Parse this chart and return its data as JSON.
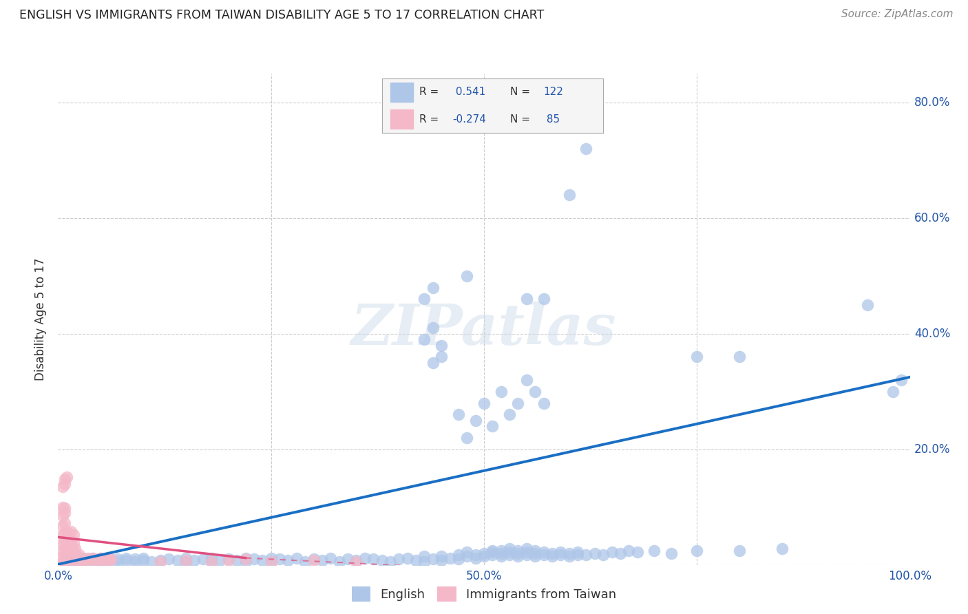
{
  "title": "ENGLISH VS IMMIGRANTS FROM TAIWAN DISABILITY AGE 5 TO 17 CORRELATION CHART",
  "source": "Source: ZipAtlas.com",
  "ylabel": "Disability Age 5 to 17",
  "xlim": [
    0.0,
    1.0
  ],
  "ylim": [
    0.0,
    0.85
  ],
  "xticks": [
    0.0,
    0.25,
    0.5,
    0.75,
    1.0
  ],
  "xticklabels": [
    "0.0%",
    "",
    "50.0%",
    "",
    "100.0%"
  ],
  "yticks": [
    0.0,
    0.2,
    0.4,
    0.6,
    0.8
  ],
  "yticklabels": [
    "",
    "20.0%",
    "40.0%",
    "60.0%",
    "80.0%"
  ],
  "english_color": "#aec6e8",
  "taiwan_color": "#f4b8c8",
  "english_line_color": "#1a6fc4",
  "taiwan_line_color": "#e05080",
  "watermark": "ZIPatlas",
  "background_color": "#ffffff",
  "grid_color": "#cccccc",
  "english_scatter": [
    [
      0.01,
      0.005
    ],
    [
      0.01,
      0.008
    ],
    [
      0.02,
      0.005
    ],
    [
      0.02,
      0.008
    ],
    [
      0.02,
      0.01
    ],
    [
      0.03,
      0.005
    ],
    [
      0.03,
      0.008
    ],
    [
      0.03,
      0.012
    ],
    [
      0.04,
      0.005
    ],
    [
      0.04,
      0.01
    ],
    [
      0.04,
      0.012
    ],
    [
      0.05,
      0.005
    ],
    [
      0.05,
      0.008
    ],
    [
      0.05,
      0.012
    ],
    [
      0.06,
      0.008
    ],
    [
      0.06,
      0.01
    ],
    [
      0.07,
      0.005
    ],
    [
      0.07,
      0.01
    ],
    [
      0.08,
      0.008
    ],
    [
      0.08,
      0.012
    ],
    [
      0.09,
      0.005
    ],
    [
      0.09,
      0.01
    ],
    [
      0.1,
      0.008
    ],
    [
      0.1,
      0.012
    ],
    [
      0.11,
      0.005
    ],
    [
      0.12,
      0.008
    ],
    [
      0.13,
      0.01
    ],
    [
      0.14,
      0.008
    ],
    [
      0.15,
      0.005
    ],
    [
      0.15,
      0.012
    ],
    [
      0.16,
      0.008
    ],
    [
      0.17,
      0.01
    ],
    [
      0.18,
      0.005
    ],
    [
      0.18,
      0.012
    ],
    [
      0.19,
      0.008
    ],
    [
      0.2,
      0.01
    ],
    [
      0.21,
      0.008
    ],
    [
      0.22,
      0.005
    ],
    [
      0.22,
      0.012
    ],
    [
      0.23,
      0.01
    ],
    [
      0.24,
      0.008
    ],
    [
      0.25,
      0.005
    ],
    [
      0.25,
      0.012
    ],
    [
      0.26,
      0.01
    ],
    [
      0.27,
      0.008
    ],
    [
      0.28,
      0.012
    ],
    [
      0.29,
      0.005
    ],
    [
      0.3,
      0.01
    ],
    [
      0.31,
      0.008
    ],
    [
      0.32,
      0.012
    ],
    [
      0.33,
      0.005
    ],
    [
      0.34,
      0.01
    ],
    [
      0.35,
      0.008
    ],
    [
      0.36,
      0.012
    ],
    [
      0.37,
      0.01
    ],
    [
      0.38,
      0.008
    ],
    [
      0.39,
      0.005
    ],
    [
      0.4,
      0.01
    ],
    [
      0.41,
      0.012
    ],
    [
      0.42,
      0.008
    ],
    [
      0.43,
      0.005
    ],
    [
      0.43,
      0.015
    ],
    [
      0.44,
      0.01
    ],
    [
      0.45,
      0.008
    ],
    [
      0.45,
      0.015
    ],
    [
      0.46,
      0.012
    ],
    [
      0.47,
      0.01
    ],
    [
      0.47,
      0.018
    ],
    [
      0.48,
      0.015
    ],
    [
      0.48,
      0.022
    ],
    [
      0.49,
      0.012
    ],
    [
      0.49,
      0.018
    ],
    [
      0.5,
      0.015
    ],
    [
      0.5,
      0.02
    ],
    [
      0.51,
      0.018
    ],
    [
      0.51,
      0.022
    ],
    [
      0.51,
      0.025
    ],
    [
      0.52,
      0.015
    ],
    [
      0.52,
      0.02
    ],
    [
      0.52,
      0.025
    ],
    [
      0.53,
      0.018
    ],
    [
      0.53,
      0.022
    ],
    [
      0.53,
      0.028
    ],
    [
      0.54,
      0.015
    ],
    [
      0.54,
      0.02
    ],
    [
      0.54,
      0.025
    ],
    [
      0.55,
      0.018
    ],
    [
      0.55,
      0.022
    ],
    [
      0.55,
      0.028
    ],
    [
      0.56,
      0.015
    ],
    [
      0.56,
      0.02
    ],
    [
      0.56,
      0.025
    ],
    [
      0.57,
      0.018
    ],
    [
      0.57,
      0.022
    ],
    [
      0.58,
      0.015
    ],
    [
      0.58,
      0.02
    ],
    [
      0.59,
      0.018
    ],
    [
      0.59,
      0.022
    ],
    [
      0.6,
      0.015
    ],
    [
      0.6,
      0.02
    ],
    [
      0.61,
      0.018
    ],
    [
      0.61,
      0.022
    ],
    [
      0.62,
      0.018
    ],
    [
      0.63,
      0.02
    ],
    [
      0.64,
      0.018
    ],
    [
      0.65,
      0.022
    ],
    [
      0.66,
      0.02
    ],
    [
      0.67,
      0.025
    ],
    [
      0.68,
      0.022
    ],
    [
      0.7,
      0.025
    ],
    [
      0.72,
      0.02
    ],
    [
      0.75,
      0.025
    ],
    [
      0.8,
      0.025
    ],
    [
      0.85,
      0.028
    ],
    [
      0.49,
      0.25
    ],
    [
      0.5,
      0.28
    ],
    [
      0.51,
      0.24
    ],
    [
      0.52,
      0.3
    ],
    [
      0.53,
      0.26
    ],
    [
      0.54,
      0.28
    ],
    [
      0.47,
      0.26
    ],
    [
      0.48,
      0.22
    ],
    [
      0.55,
      0.32
    ],
    [
      0.56,
      0.3
    ],
    [
      0.57,
      0.28
    ],
    [
      0.43,
      0.39
    ],
    [
      0.44,
      0.41
    ],
    [
      0.45,
      0.38
    ],
    [
      0.44,
      0.35
    ],
    [
      0.45,
      0.36
    ],
    [
      0.43,
      0.46
    ],
    [
      0.44,
      0.48
    ],
    [
      0.55,
      0.46
    ],
    [
      0.48,
      0.5
    ],
    [
      0.57,
      0.46
    ],
    [
      0.6,
      0.64
    ],
    [
      0.62,
      0.72
    ],
    [
      0.75,
      0.36
    ],
    [
      0.8,
      0.36
    ],
    [
      0.95,
      0.45
    ],
    [
      0.98,
      0.3
    ],
    [
      0.99,
      0.32
    ]
  ],
  "taiwan_scatter": [
    [
      0.005,
      0.005
    ],
    [
      0.007,
      0.008
    ],
    [
      0.008,
      0.006
    ],
    [
      0.01,
      0.01
    ],
    [
      0.012,
      0.008
    ],
    [
      0.015,
      0.012
    ],
    [
      0.018,
      0.008
    ],
    [
      0.02,
      0.01
    ],
    [
      0.022,
      0.012
    ],
    [
      0.025,
      0.008
    ],
    [
      0.028,
      0.01
    ],
    [
      0.03,
      0.008
    ],
    [
      0.032,
      0.01
    ],
    [
      0.035,
      0.012
    ],
    [
      0.038,
      0.008
    ],
    [
      0.04,
      0.01
    ],
    [
      0.042,
      0.012
    ],
    [
      0.045,
      0.008
    ],
    [
      0.048,
      0.01
    ],
    [
      0.05,
      0.012
    ],
    [
      0.052,
      0.008
    ],
    [
      0.055,
      0.01
    ],
    [
      0.058,
      0.012
    ],
    [
      0.06,
      0.008
    ],
    [
      0.062,
      0.01
    ],
    [
      0.005,
      0.015
    ],
    [
      0.008,
      0.018
    ],
    [
      0.01,
      0.015
    ],
    [
      0.012,
      0.018
    ],
    [
      0.015,
      0.02
    ],
    [
      0.018,
      0.015
    ],
    [
      0.02,
      0.018
    ],
    [
      0.022,
      0.015
    ],
    [
      0.025,
      0.018
    ],
    [
      0.005,
      0.025
    ],
    [
      0.008,
      0.028
    ],
    [
      0.01,
      0.025
    ],
    [
      0.012,
      0.028
    ],
    [
      0.015,
      0.03
    ],
    [
      0.018,
      0.025
    ],
    [
      0.02,
      0.028
    ],
    [
      0.005,
      0.038
    ],
    [
      0.008,
      0.04
    ],
    [
      0.01,
      0.038
    ],
    [
      0.012,
      0.04
    ],
    [
      0.015,
      0.042
    ],
    [
      0.018,
      0.038
    ],
    [
      0.005,
      0.052
    ],
    [
      0.008,
      0.055
    ],
    [
      0.01,
      0.052
    ],
    [
      0.012,
      0.055
    ],
    [
      0.015,
      0.058
    ],
    [
      0.018,
      0.052
    ],
    [
      0.005,
      0.068
    ],
    [
      0.008,
      0.072
    ],
    [
      0.005,
      0.085
    ],
    [
      0.008,
      0.09
    ],
    [
      0.005,
      0.1
    ],
    [
      0.008,
      0.098
    ],
    [
      0.005,
      0.135
    ],
    [
      0.008,
      0.14
    ],
    [
      0.12,
      0.005
    ],
    [
      0.15,
      0.008
    ],
    [
      0.18,
      0.005
    ],
    [
      0.2,
      0.008
    ],
    [
      0.22,
      0.01
    ],
    [
      0.25,
      0.005
    ],
    [
      0.3,
      0.008
    ],
    [
      0.35,
      0.005
    ],
    [
      0.008,
      0.148
    ],
    [
      0.01,
      0.152
    ]
  ],
  "english_line": {
    "x0": 0.0,
    "y0": 0.001,
    "x1": 1.0,
    "y1": 0.325
  },
  "taiwan_line_solid": {
    "x0": 0.0,
    "y0": 0.048,
    "x1": 0.22,
    "y1": 0.012
  },
  "taiwan_line_dash": {
    "x0": 0.22,
    "y0": 0.012,
    "x1": 0.5,
    "y1": -0.008
  }
}
